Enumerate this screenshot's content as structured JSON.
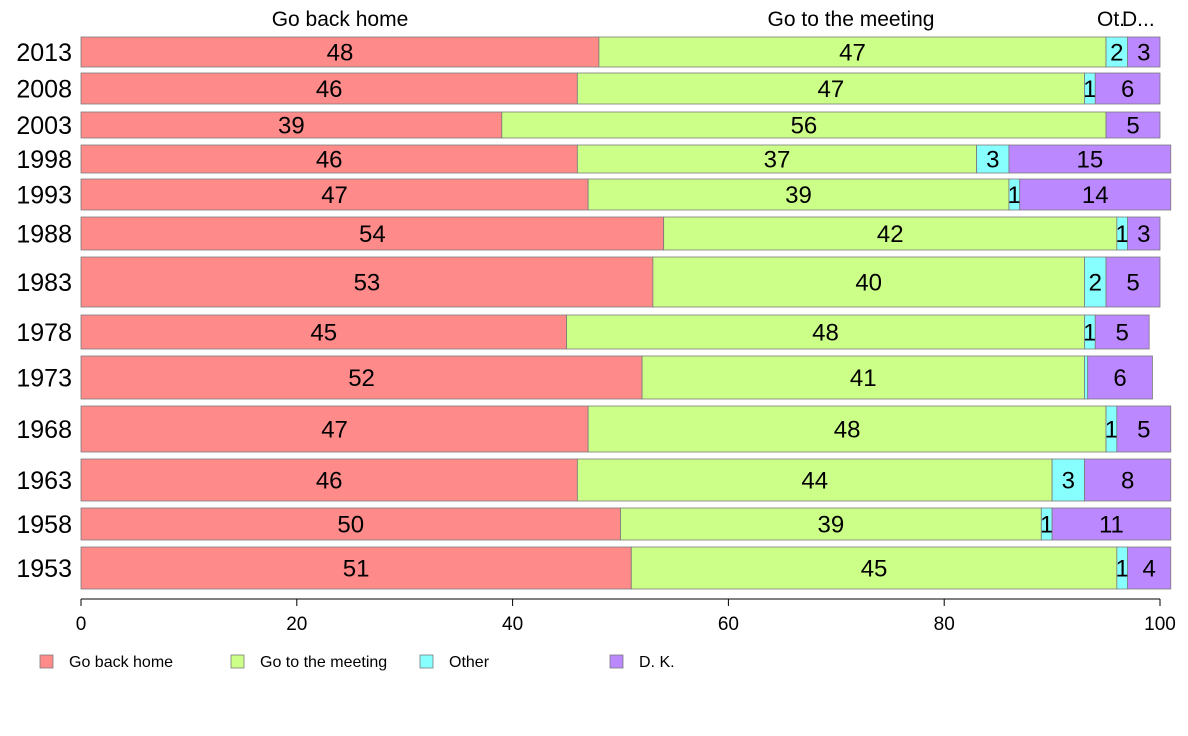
{
  "chart_data": {
    "type": "bar",
    "orientation": "horizontal",
    "stacked": true,
    "categories": [
      "2013",
      "2008",
      "2003",
      "1998",
      "1993",
      "1988",
      "1983",
      "1978",
      "1973",
      "1968",
      "1963",
      "1958",
      "1953"
    ],
    "series": [
      {
        "name": "Go back home",
        "color": "#ff8a8a",
        "values": [
          48,
          46,
          39,
          46,
          47,
          54,
          53,
          45,
          52,
          47,
          46,
          50,
          51
        ]
      },
      {
        "name": "Go to the meeting",
        "color": "#ccff88",
        "values": [
          47,
          47,
          56,
          37,
          39,
          42,
          40,
          48,
          41,
          48,
          44,
          39,
          45
        ]
      },
      {
        "name": "Other",
        "color": "#88ffff",
        "values": [
          2,
          1,
          0,
          3,
          1,
          1,
          2,
          1,
          0.3,
          1,
          3,
          1,
          1
        ]
      },
      {
        "name": "D. K.",
        "color": "#bb88ff",
        "values": [
          3,
          6,
          5,
          15,
          14,
          3,
          5,
          5,
          6,
          5,
          8,
          11,
          4
        ]
      }
    ],
    "segment_labels": [
      [
        "48",
        "47",
        "2",
        "3"
      ],
      [
        "46",
        "47",
        "1",
        "6"
      ],
      [
        "39",
        "56",
        "",
        "5"
      ],
      [
        "46",
        "37",
        "3",
        "15"
      ],
      [
        "47",
        "39",
        "1",
        "14"
      ],
      [
        "54",
        "42",
        "1",
        "3"
      ],
      [
        "53",
        "40",
        "2",
        "5"
      ],
      [
        "45",
        "48",
        "1",
        "5"
      ],
      [
        "52",
        "41",
        "",
        "6"
      ],
      [
        "47",
        "48",
        "1",
        "5"
      ],
      [
        "46",
        "44",
        "3",
        "8"
      ],
      [
        "50",
        "39",
        "1",
        "11"
      ],
      [
        "51",
        "45",
        "1",
        "4"
      ]
    ],
    "column_headers": [
      "Go back home",
      "Go to the meeting",
      "Ot.",
      "D..."
    ],
    "xlim": [
      0,
      100
    ],
    "xticks": [
      0,
      20,
      40,
      60,
      80,
      100
    ],
    "legend_position": "bottom-left",
    "grid": false
  }
}
